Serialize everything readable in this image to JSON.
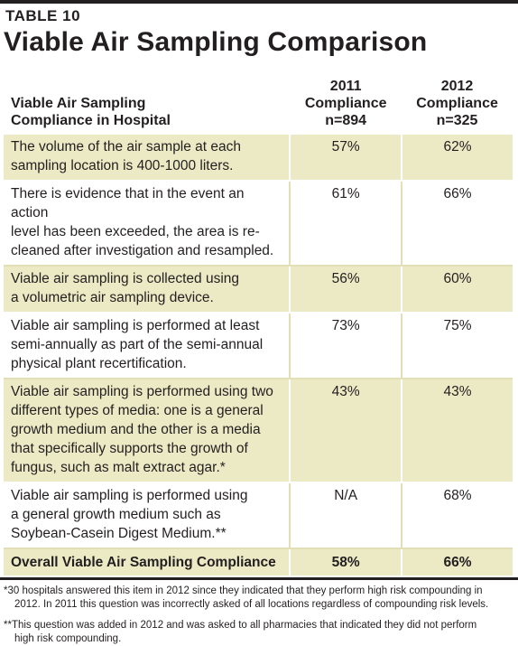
{
  "header": {
    "table_label": "TABLE 10",
    "title": "Viable Air Sampling Comparison"
  },
  "table": {
    "column_headers": {
      "label": [
        "Viable Air Sampling",
        "Compliance in Hospital"
      ],
      "col_2011": [
        "2011",
        "Compliance",
        "n=894"
      ],
      "col_2012": [
        "2012",
        "Compliance",
        "n=325"
      ]
    },
    "rows": [
      {
        "lines": [
          "The volume of the air sample at each",
          "sampling location is 400-1000 liters."
        ],
        "v2011": "57%",
        "v2012": "62%"
      },
      {
        "lines": [
          "There is evidence that in the event an action",
          "level has been exceeded, the area is re-",
          "cleaned after investigation and resampled."
        ],
        "v2011": "61%",
        "v2012": "66%"
      },
      {
        "lines": [
          "Viable air sampling is collected using",
          "a volumetric air sampling device."
        ],
        "v2011": "56%",
        "v2012": "60%"
      },
      {
        "lines": [
          "Viable air sampling is performed at least",
          "semi-annually as part of the semi-annual",
          "physical plant recertification."
        ],
        "v2011": "73%",
        "v2012": "75%"
      },
      {
        "lines": [
          "Viable air sampling is performed using two",
          "different types of media: one is a general",
          "growth medium and the other is a media",
          "that specifically supports the growth of",
          "fungus, such as malt extract agar.*"
        ],
        "v2011": "43%",
        "v2012": "43%"
      },
      {
        "lines": [
          "Viable air sampling is performed using",
          "a general growth medium such as",
          "Soybean-Casein Digest Medium.**"
        ],
        "v2011": "N/A",
        "v2012": "68%"
      }
    ],
    "overall": {
      "label": "Overall Viable Air Sampling Compliance",
      "v2011": "58%",
      "v2012": "66%"
    }
  },
  "footnotes": [
    {
      "first": "*30 hospitals answered this item in 2012 since they indicated that they perform high risk compounding in",
      "rest": "2012. In 2011 this question was incorrectly asked of all locations regardless of compounding risk levels."
    },
    {
      "first": "**This question was added in 2012 and was asked to all pharmacies that indicated they did not perform",
      "rest": "high risk compounding."
    }
  ],
  "colors": {
    "shade": "#eceac5",
    "rule": "#231f20"
  }
}
